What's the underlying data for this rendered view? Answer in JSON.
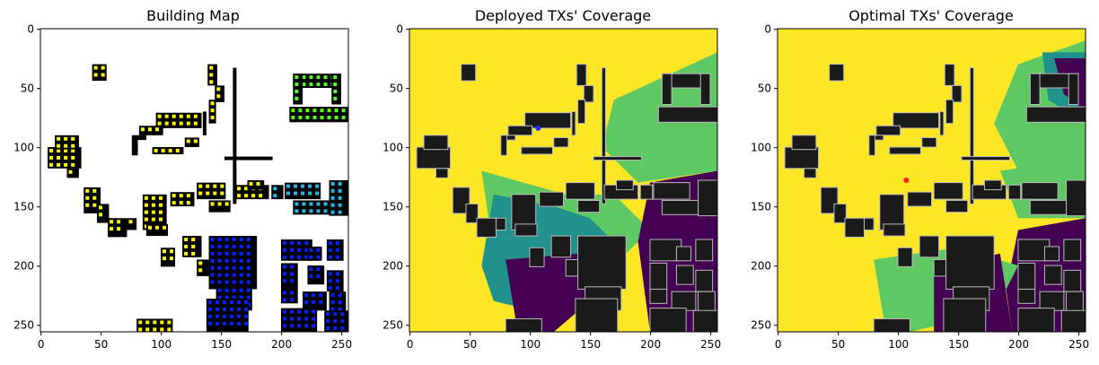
{
  "figure": {
    "type": "image-panels",
    "panels": [
      {
        "id": "building",
        "title": "Building Map",
        "xticks": [
          0,
          50,
          100,
          150,
          200,
          250
        ],
        "yticks": [
          0,
          50,
          100,
          150,
          200,
          250
        ],
        "extent": [
          0,
          256
        ],
        "background": "#ffffff",
        "marker_colors": [
          "#ffff00",
          "#55ff22",
          "#22b8e8",
          "#0022ff"
        ]
      },
      {
        "id": "deployed",
        "title": "Deployed TXs' Coverage",
        "xticks": [
          0,
          50,
          100,
          150,
          200,
          250
        ],
        "yticks": [
          0,
          50,
          100,
          150,
          200,
          250
        ],
        "extent": [
          0,
          256
        ],
        "background": "#fde725",
        "tx_marker": {
          "x": 107,
          "y": 84,
          "color": "#1f2bff"
        }
      },
      {
        "id": "optimal",
        "title": "Optimal TXs' Coverage",
        "xticks": [
          0,
          50,
          100,
          150,
          200,
          250
        ],
        "yticks": [
          0,
          50,
          100,
          150,
          200,
          250
        ],
        "extent": [
          0,
          256
        ],
        "background": "#fde725",
        "tx_marker": {
          "x": 107,
          "y": 128,
          "color": "#ff1f1f"
        }
      }
    ],
    "colormap": {
      "high": "#fde725",
      "mid_high": "#5ec962",
      "mid": "#21918c",
      "low": "#440154",
      "building": "#1a1a1a",
      "edge": "#bbbbbb"
    }
  }
}
